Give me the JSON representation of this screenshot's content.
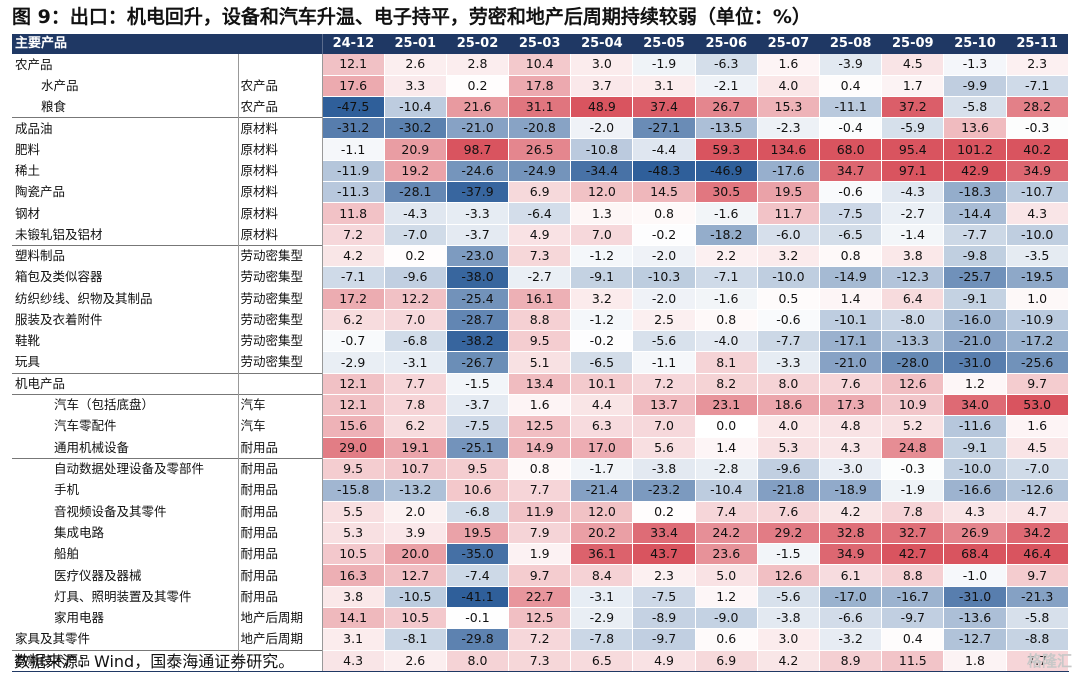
{
  "title": "图 9：出口：机电回升，设备和汽车升温、电子持平，劳密和地产后周期持续较弱（单位：%）",
  "source": "数据来源：Wind，国泰海通证券研究。",
  "watermark": "格隆汇",
  "colors": {
    "header_bg": "#1f3864",
    "positive": "#d9545f",
    "negative": "#2f5f9a"
  },
  "chart_data": {
    "type": "heatmap",
    "header_label": "主要产品",
    "columns": [
      "24-12",
      "25-01",
      "25-02",
      "25-03",
      "25-04",
      "25-05",
      "25-06",
      "25-07",
      "25-08",
      "25-09",
      "25-10",
      "25-11"
    ],
    "rows": [
      {
        "name": "农产品",
        "category": "",
        "indent": 0,
        "values": [
          12.1,
          2.6,
          2.8,
          10.4,
          3.0,
          -1.9,
          -6.3,
          1.6,
          -3.9,
          4.5,
          -1.3,
          2.3
        ]
      },
      {
        "name": "水产品",
        "category": "农产品",
        "indent": 2,
        "values": [
          17.6,
          3.3,
          0.2,
          17.8,
          3.7,
          3.1,
          -2.1,
          4.0,
          0.4,
          1.7,
          -9.9,
          -7.1
        ]
      },
      {
        "name": "粮食",
        "category": "农产品",
        "indent": 2,
        "values": [
          -47.5,
          -10.4,
          21.6,
          31.1,
          48.9,
          37.4,
          26.7,
          15.3,
          -11.1,
          37.2,
          -5.8,
          28.2
        ]
      },
      {
        "name": "成品油",
        "category": "原材料",
        "indent": 0,
        "sep": true,
        "values": [
          -31.2,
          -30.2,
          -21.0,
          -20.8,
          -2.0,
          -27.1,
          -13.5,
          -2.3,
          -0.4,
          -5.9,
          13.6,
          -0.3
        ]
      },
      {
        "name": "肥料",
        "category": "原材料",
        "indent": 0,
        "values": [
          -1.1,
          20.9,
          98.7,
          26.5,
          -10.8,
          -4.4,
          59.3,
          134.6,
          68.0,
          95.4,
          101.2,
          40.2
        ]
      },
      {
        "name": "稀土",
        "category": "原材料",
        "indent": 0,
        "values": [
          -11.9,
          19.2,
          -24.6,
          -24.9,
          -34.4,
          -48.3,
          -46.9,
          -17.6,
          34.7,
          97.1,
          42.9,
          34.9
        ]
      },
      {
        "name": "陶瓷产品",
        "category": "原材料",
        "indent": 0,
        "values": [
          -11.3,
          -28.1,
          -37.9,
          6.9,
          12.0,
          14.5,
          30.5,
          19.5,
          -0.6,
          -4.3,
          -18.3,
          -10.7
        ]
      },
      {
        "name": "钢材",
        "category": "原材料",
        "indent": 0,
        "values": [
          11.8,
          -4.3,
          -3.3,
          -6.4,
          1.3,
          0.8,
          -1.6,
          11.7,
          -7.5,
          -2.7,
          -14.4,
          4.3
        ]
      },
      {
        "name": "未锻轧铝及铝材",
        "category": "原材料",
        "indent": 0,
        "values": [
          7.2,
          -7.0,
          -3.7,
          4.9,
          7.0,
          -0.2,
          -18.2,
          -6.0,
          -6.5,
          -1.4,
          -7.7,
          -10.0
        ]
      },
      {
        "name": "塑料制品",
        "category": "劳动密集型",
        "indent": 0,
        "sep": true,
        "values": [
          4.2,
          0.2,
          -23.0,
          7.3,
          -1.2,
          -2.0,
          2.2,
          3.2,
          0.8,
          3.8,
          -9.8,
          -3.5
        ]
      },
      {
        "name": "箱包及类似容器",
        "category": "劳动密集型",
        "indent": 0,
        "values": [
          -7.1,
          -9.6,
          -38.0,
          -2.7,
          -9.1,
          -10.3,
          -7.1,
          -10.0,
          -14.9,
          -12.3,
          -25.7,
          -19.5
        ]
      },
      {
        "name": "纺织纱线、织物及其制品",
        "category": "劳动密集型",
        "indent": 0,
        "values": [
          17.2,
          12.2,
          -25.4,
          16.1,
          3.2,
          -2.0,
          -1.6,
          0.5,
          1.4,
          6.4,
          -9.1,
          1.0
        ]
      },
      {
        "name": "服装及衣着附件",
        "category": "劳动密集型",
        "indent": 0,
        "values": [
          6.2,
          7.0,
          -28.7,
          8.8,
          -1.2,
          2.5,
          0.8,
          -0.6,
          -10.1,
          -8.0,
          -16.0,
          -10.9
        ]
      },
      {
        "name": "鞋靴",
        "category": "劳动密集型",
        "indent": 0,
        "values": [
          -0.7,
          -6.8,
          -38.2,
          9.5,
          -0.2,
          -5.6,
          -4.0,
          -7.7,
          -17.1,
          -13.3,
          -21.0,
          -17.2
        ]
      },
      {
        "name": "玩具",
        "category": "劳动密集型",
        "indent": 0,
        "values": [
          -2.9,
          -3.1,
          -26.7,
          5.1,
          -6.5,
          -1.1,
          8.1,
          -3.3,
          -21.0,
          -28.0,
          -31.0,
          -25.6
        ]
      },
      {
        "name": "机电产品",
        "category": "",
        "indent": 0,
        "sep": true,
        "values": [
          12.1,
          7.7,
          -1.5,
          13.4,
          10.1,
          7.2,
          8.2,
          8.0,
          7.6,
          12.6,
          1.2,
          9.7
        ]
      },
      {
        "name": "汽车（包括底盘）",
        "category": "汽车",
        "indent": 3,
        "sep": true,
        "values": [
          12.1,
          7.8,
          -3.7,
          1.6,
          4.4,
          13.7,
          23.1,
          18.6,
          17.3,
          10.9,
          34.0,
          53.0
        ]
      },
      {
        "name": "汽车零配件",
        "category": "汽车",
        "indent": 3,
        "values": [
          15.6,
          6.2,
          -7.5,
          12.5,
          6.3,
          7.0,
          0.0,
          4.0,
          4.8,
          5.2,
          -11.6,
          1.6
        ]
      },
      {
        "name": "通用机械设备",
        "category": "耐用品",
        "indent": 3,
        "values": [
          29.0,
          19.1,
          -25.1,
          14.9,
          17.0,
          5.6,
          1.4,
          5.3,
          4.3,
          24.8,
          -9.1,
          4.5
        ]
      },
      {
        "name": "自动数据处理设备及零部件",
        "category": "耐用品",
        "indent": 3,
        "sep": true,
        "values": [
          9.5,
          10.7,
          9.5,
          0.8,
          -1.7,
          -3.8,
          -2.8,
          -9.6,
          -3.0,
          -0.3,
          -10.0,
          -7.0
        ]
      },
      {
        "name": "手机",
        "category": "耐用品",
        "indent": 3,
        "values": [
          -15.8,
          -13.2,
          10.6,
          7.7,
          -21.4,
          -23.2,
          -10.4,
          -21.8,
          -18.9,
          -1.9,
          -16.6,
          -12.6
        ]
      },
      {
        "name": "音视频设备及其零件",
        "category": "耐用品",
        "indent": 3,
        "values": [
          5.5,
          2.0,
          -6.8,
          11.9,
          12.0,
          0.2,
          7.4,
          7.6,
          4.2,
          7.8,
          4.3,
          4.7
        ]
      },
      {
        "name": "集成电路",
        "category": "耐用品",
        "indent": 3,
        "values": [
          5.3,
          3.9,
          19.5,
          7.9,
          20.2,
          33.4,
          24.2,
          29.2,
          32.8,
          32.7,
          26.9,
          34.2
        ]
      },
      {
        "name": "船舶",
        "category": "耐用品",
        "indent": 3,
        "values": [
          10.5,
          20.0,
          -35.0,
          1.9,
          36.1,
          43.7,
          23.6,
          -1.5,
          34.9,
          42.7,
          68.4,
          46.4
        ]
      },
      {
        "name": "医疗仪器及器械",
        "category": "耐用品",
        "indent": 3,
        "values": [
          16.3,
          12.7,
          -7.4,
          9.7,
          8.4,
          2.3,
          5.0,
          12.6,
          6.1,
          8.8,
          -1.0,
          9.7
        ]
      },
      {
        "name": "灯具、照明装置及其零件",
        "category": "耐用品",
        "indent": 3,
        "values": [
          3.8,
          -10.5,
          -41.1,
          22.7,
          -3.1,
          -7.5,
          1.2,
          -5.6,
          -17.0,
          -16.7,
          -31.0,
          -21.3
        ]
      },
      {
        "name": "家用电器",
        "category": "地产后周期",
        "indent": 3,
        "values": [
          14.1,
          10.5,
          -0.1,
          12.5,
          -2.9,
          -8.9,
          -9.0,
          -3.8,
          -6.6,
          -9.7,
          -13.6,
          -5.8
        ]
      },
      {
        "name": "家具及其零件",
        "category": "地产后周期",
        "indent": 0,
        "values": [
          3.1,
          -8.1,
          -29.8,
          7.2,
          -7.8,
          -9.7,
          0.6,
          3.0,
          -3.2,
          0.4,
          -12.7,
          -8.8
        ]
      },
      {
        "name": "高新技术产品",
        "category": "",
        "indent": 0,
        "sep": true,
        "values": [
          4.3,
          2.6,
          8.0,
          7.3,
          6.5,
          4.9,
          6.9,
          4.2,
          8.9,
          11.5,
          1.8,
          7.7
        ]
      }
    ]
  }
}
